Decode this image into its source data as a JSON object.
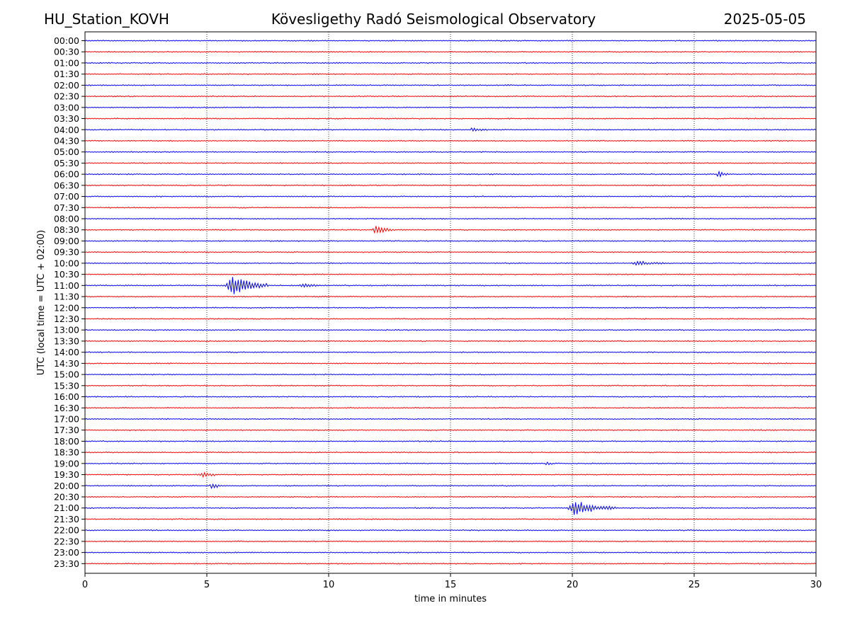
{
  "header": {
    "station": "HU_Station_KOVH",
    "title": "Kövesligethy Radó Seismological Observatory",
    "date": "2025-05-05"
  },
  "chart_data": {
    "type": "line",
    "title": "Kövesligethy Radó Seismological Observatory",
    "xlabel": "time in minutes",
    "ylabel": "UTC (local time = UTC + 02:00)",
    "xlim": [
      0,
      30
    ],
    "x_ticks": [
      "0",
      "5",
      "10",
      "15",
      "20",
      "25",
      "30"
    ],
    "grid": "vertical dotted lines at 5, 10, 15, 20, 25",
    "trace_colors": [
      "#0000ff",
      "#ff0000"
    ],
    "rows": [
      "00:00",
      "00:30",
      "01:00",
      "01:30",
      "02:00",
      "02:30",
      "03:00",
      "03:30",
      "04:00",
      "04:30",
      "05:00",
      "05:30",
      "06:00",
      "06:30",
      "07:00",
      "07:30",
      "08:00",
      "08:30",
      "09:00",
      "09:30",
      "10:00",
      "10:30",
      "11:00",
      "11:30",
      "12:00",
      "12:30",
      "13:00",
      "13:30",
      "14:00",
      "14:30",
      "15:00",
      "15:30",
      "16:00",
      "16:30",
      "17:00",
      "17:30",
      "18:00",
      "18:30",
      "19:00",
      "19:30",
      "20:00",
      "20:30",
      "21:00",
      "21:30",
      "22:00",
      "22:30",
      "23:00",
      "23:30"
    ],
    "events": [
      {
        "row": "08:30",
        "start_min": 11.8,
        "end_min": 12.6,
        "peak": 0.9
      },
      {
        "row": "10:00",
        "start_min": 22.4,
        "end_min": 23.8,
        "peak": 0.45
      },
      {
        "row": "11:00",
        "start_min": 5.75,
        "end_min": 7.5,
        "peak": 2.2
      },
      {
        "row": "11:00",
        "start_min": 8.8,
        "end_min": 9.6,
        "peak": 0.45
      },
      {
        "row": "19:30",
        "start_min": 4.7,
        "end_min": 5.4,
        "peak": 0.5
      },
      {
        "row": "20:00",
        "start_min": 5.1,
        "end_min": 5.7,
        "peak": 0.6
      },
      {
        "row": "21:00",
        "start_min": 19.8,
        "end_min": 21.8,
        "peak": 1.5
      },
      {
        "row": "06:00",
        "start_min": 25.9,
        "end_min": 26.5,
        "peak": 0.6
      },
      {
        "row": "04:00",
        "start_min": 15.8,
        "end_min": 16.5,
        "peak": 0.35
      },
      {
        "row": "19:00",
        "start_min": 18.9,
        "end_min": 19.2,
        "peak": 0.45
      }
    ]
  }
}
